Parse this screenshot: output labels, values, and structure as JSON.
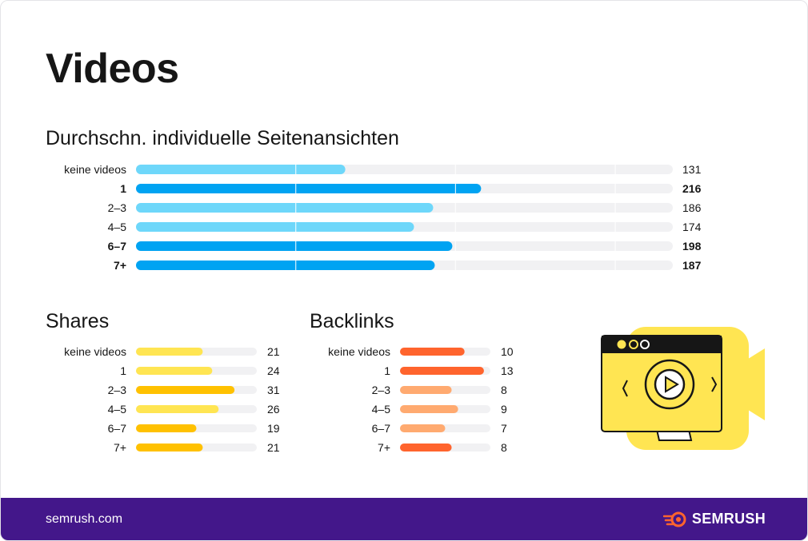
{
  "title": "Videos",
  "footer": {
    "url": "semrush.com",
    "brand": "SEMRUSH"
  },
  "chart_data": [
    {
      "type": "bar",
      "title": "Durchschn. individuelle Seitenansichten",
      "categories": [
        "keine videos",
        "1",
        "2–3",
        "4–5",
        "6–7",
        "7+"
      ],
      "values": [
        131,
        216,
        186,
        174,
        198,
        187
      ],
      "value_labels": [
        "131",
        "216",
        "186",
        "174",
        "198",
        "187"
      ],
      "bold": [
        false,
        true,
        false,
        false,
        true,
        true
      ],
      "colors": [
        "#6ed7fa",
        "#00a3f2",
        "#6ed7fa",
        "#6ed7fa",
        "#00a3f2",
        "#00a3f2"
      ],
      "xlim": [
        0,
        336
      ],
      "track_color": "#f1f1f3",
      "grid": true
    },
    {
      "type": "bar",
      "title": "Shares",
      "categories": [
        "keine videos",
        "1",
        "2–3",
        "4–5",
        "6–7",
        "7+"
      ],
      "values": [
        21,
        24,
        31,
        26,
        19,
        21
      ],
      "value_labels": [
        "21",
        "24",
        "31",
        "26",
        "19",
        "21"
      ],
      "colors": [
        "#ffe552",
        "#ffe552",
        "#ffc100",
        "#ffe552",
        "#ffc100",
        "#ffc100"
      ],
      "xlim": [
        0,
        38
      ],
      "track_color": "#f1f1f3",
      "grid": true
    },
    {
      "type": "bar",
      "title": "Backlinks",
      "categories": [
        "keine videos",
        "1",
        "2–3",
        "4–5",
        "6–7",
        "7+"
      ],
      "values": [
        10,
        13,
        8,
        9,
        7,
        8
      ],
      "value_labels": [
        "10",
        "13",
        "8",
        "9",
        "7",
        "8"
      ],
      "colors": [
        "#ff642d",
        "#ff642d",
        "#ffaa70",
        "#ffaa70",
        "#ffaa70",
        "#ff642d"
      ],
      "xlim": [
        0,
        14
      ],
      "track_color": "#f1f1f3",
      "grid": false
    }
  ]
}
